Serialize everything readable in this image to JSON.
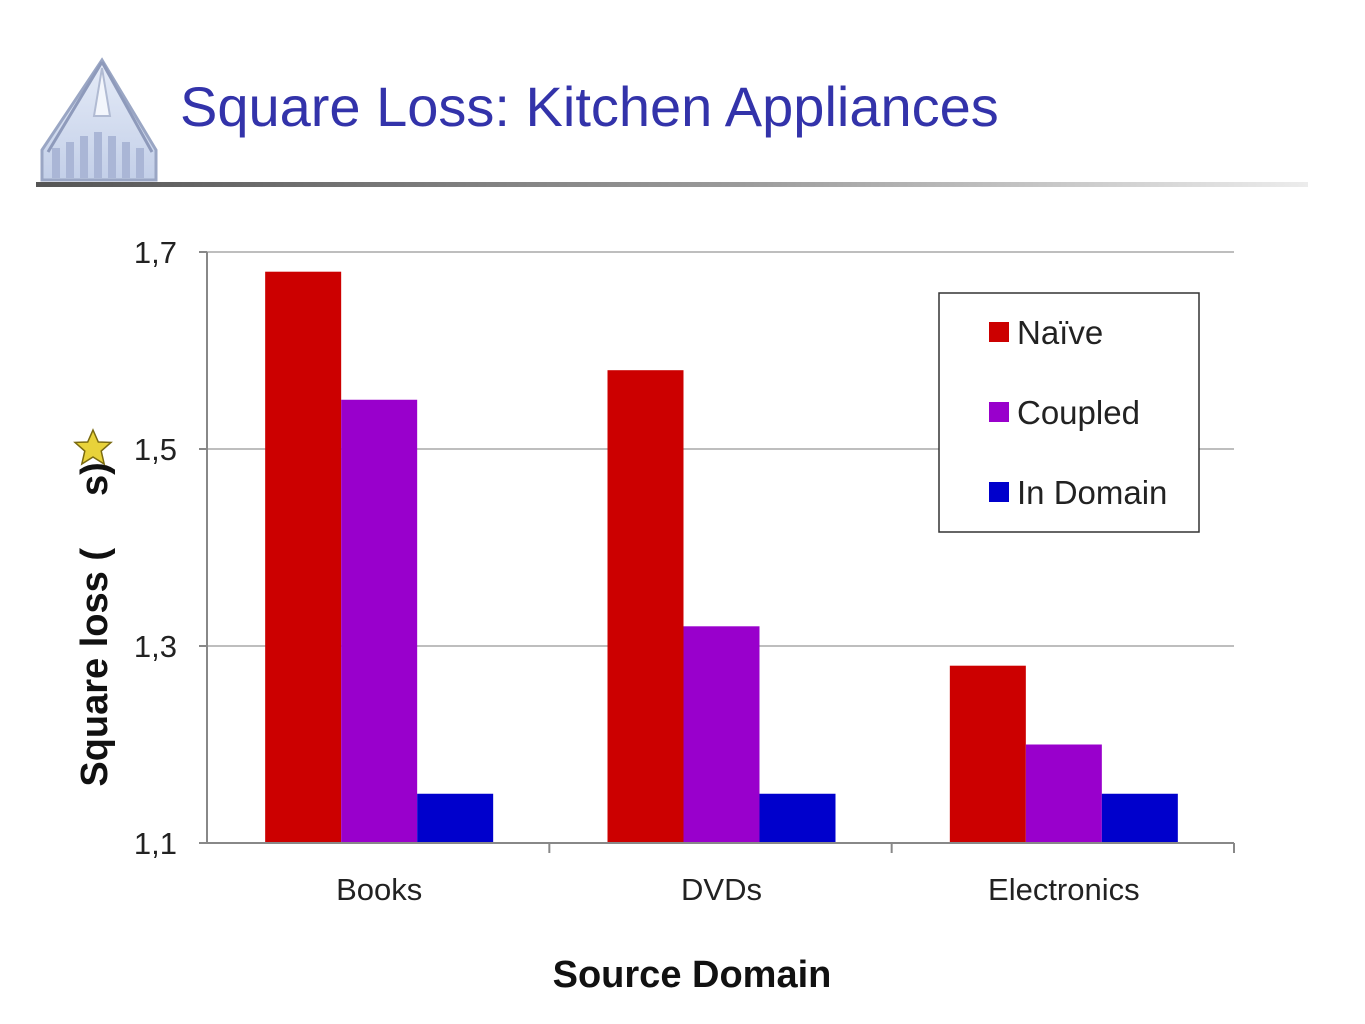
{
  "slide": {
    "title": "Square Loss: Kitchen Appliances"
  },
  "icons": {
    "logo": "cathedral-logo-icon",
    "star": "star-icon"
  },
  "colors": {
    "title": "#3333aa",
    "naive": "#cc0000",
    "coupled": "#9900cc",
    "in_domain": "#0000cc",
    "grid": "#a8a8a8"
  },
  "chart_data": {
    "type": "bar",
    "categories": [
      "Books",
      "DVDs",
      "Electronics"
    ],
    "series": [
      {
        "name": "Naïve",
        "values": [
          1.68,
          1.58,
          1.28
        ]
      },
      {
        "name": "Coupled",
        "values": [
          1.55,
          1.32,
          1.2
        ]
      },
      {
        "name": "In Domain",
        "values": [
          1.15,
          1.15,
          1.15
        ]
      }
    ],
    "ylim": [
      1.1,
      1.7
    ],
    "yticks": [
      "1,1",
      "1,3",
      "1,5",
      "1,7"
    ],
    "ytick_values": [
      1.1,
      1.3,
      1.5,
      1.7
    ],
    "xlabel": "Source Domain",
    "ylabel_before_icon": "Square loss (",
    "ylabel_after_icon": " s)",
    "grid": true,
    "legend_position": "top-right"
  }
}
